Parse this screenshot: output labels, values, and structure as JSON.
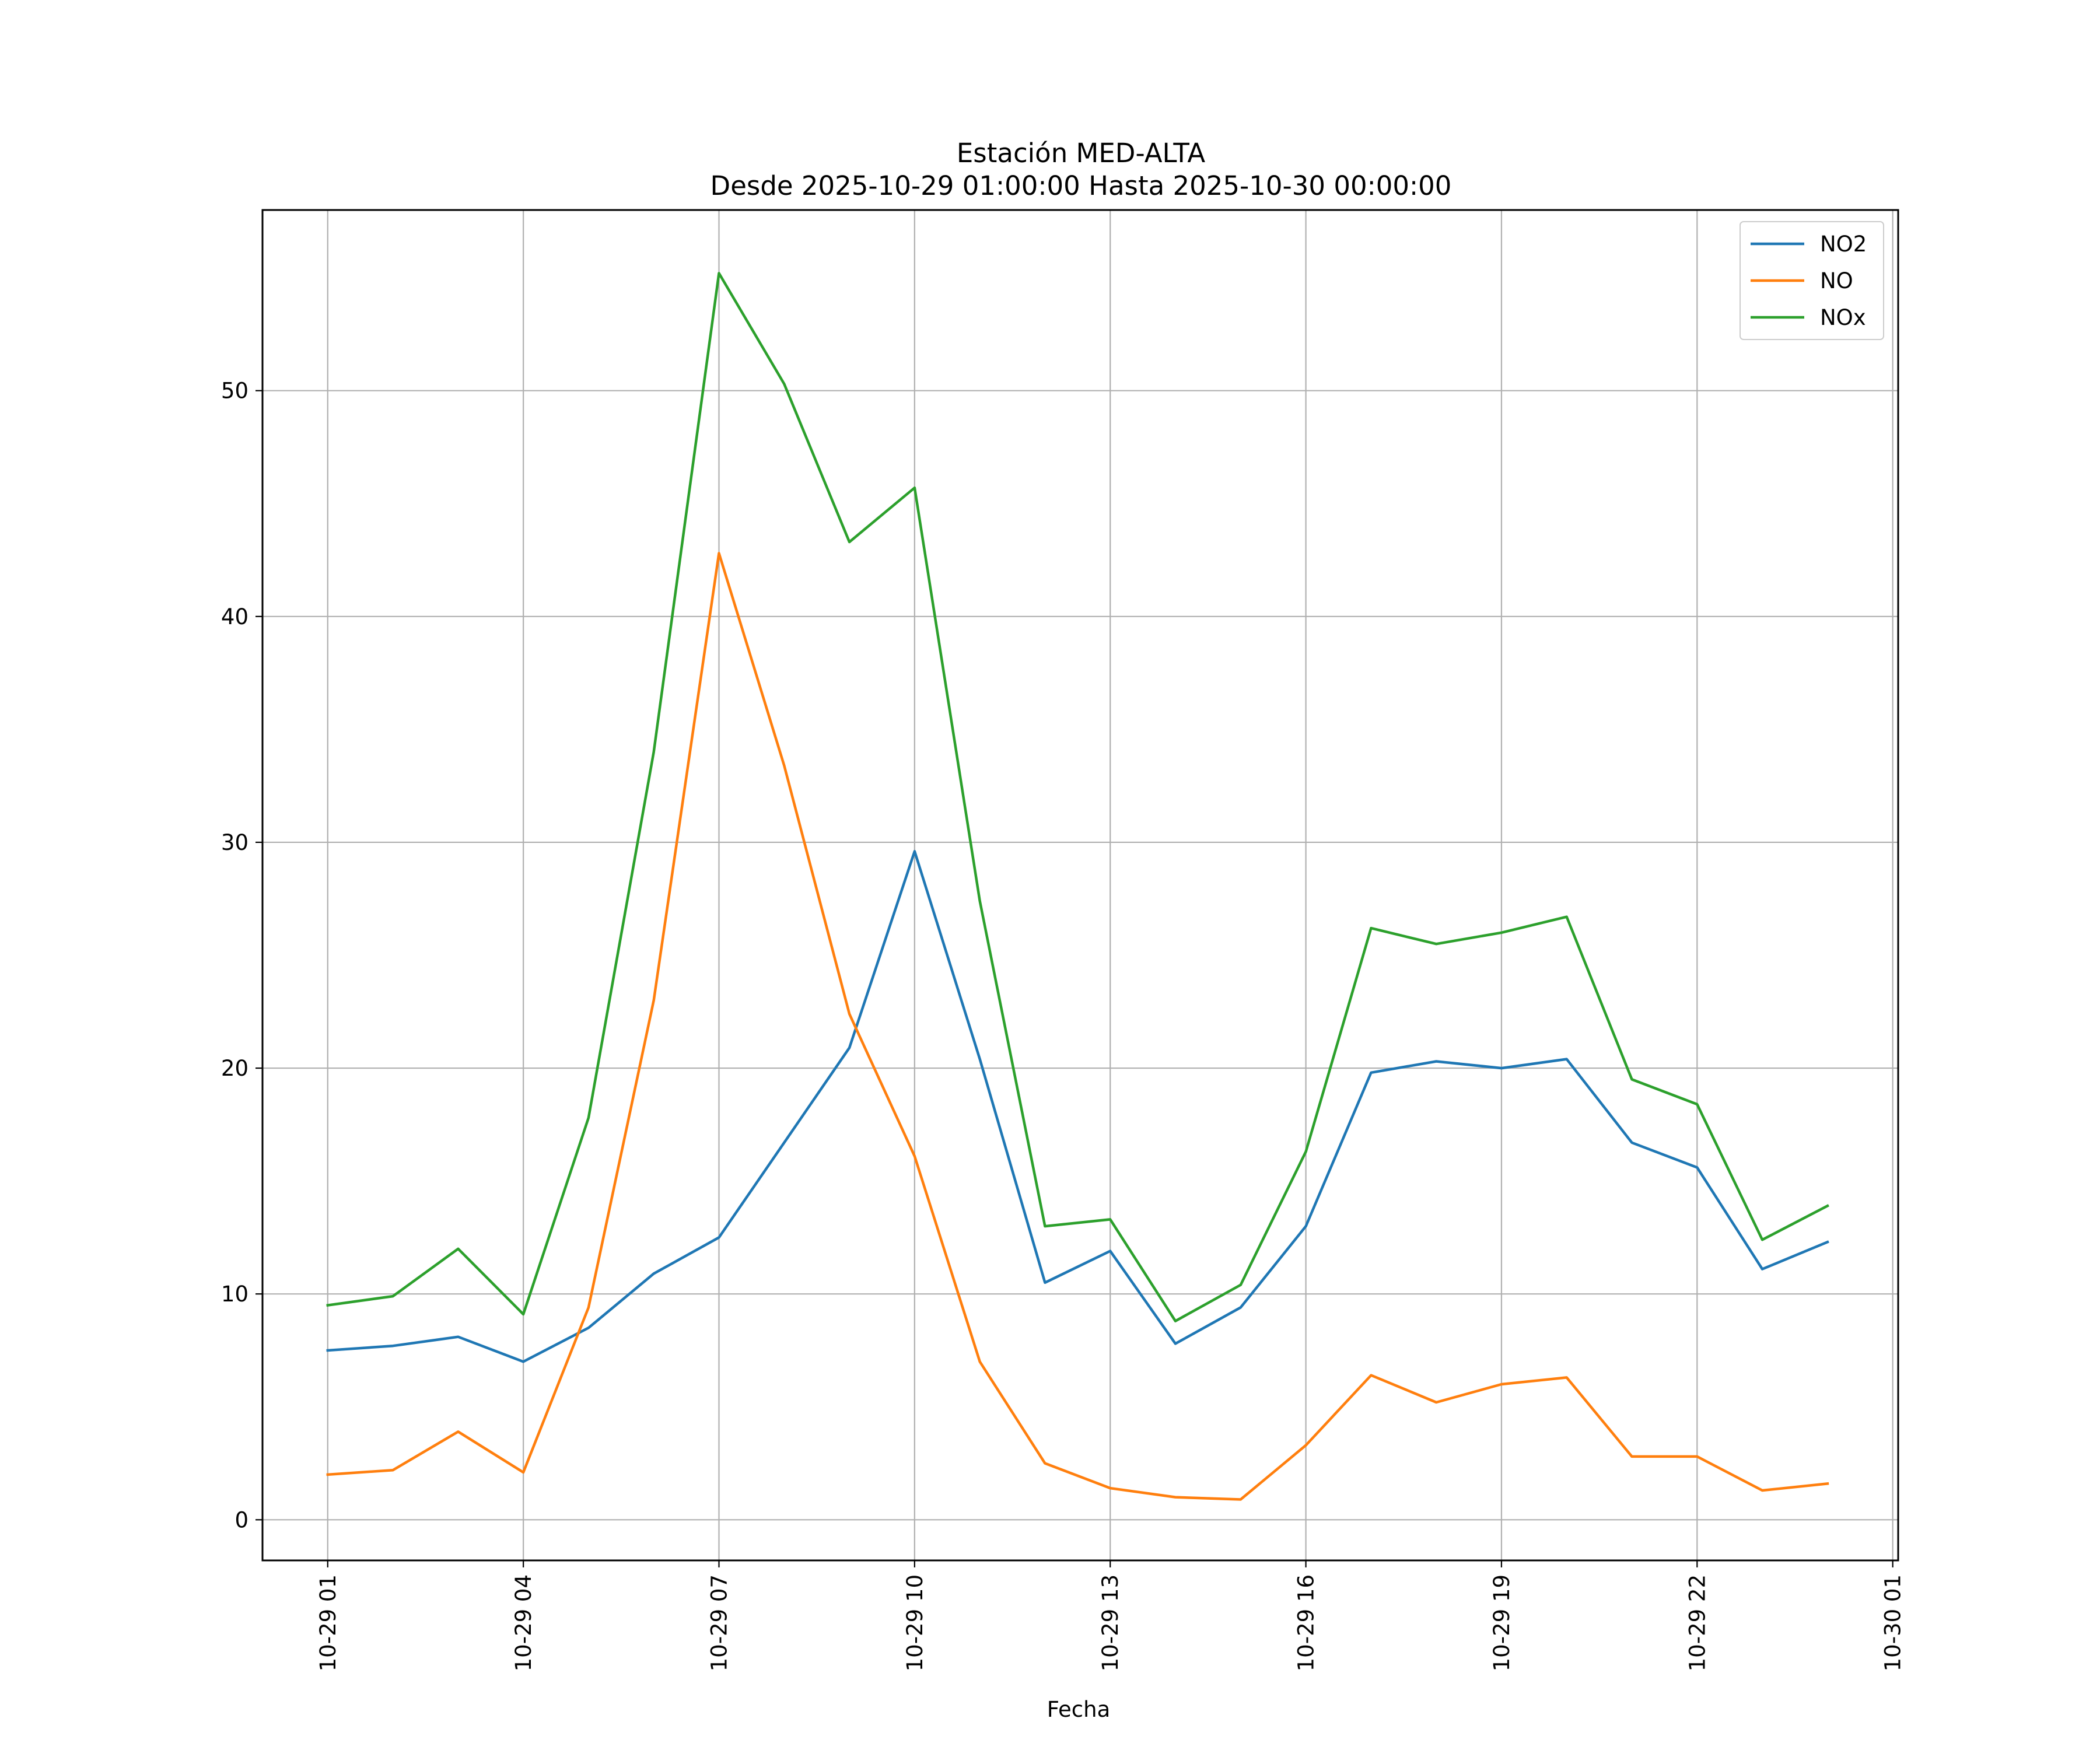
{
  "chart_data": {
    "type": "line",
    "title_line1": "Estación MED-ALTA",
    "title_line2": "Desde 2025-10-29 01:00:00 Hasta 2025-10-30 00:00:00",
    "xlabel": "Fecha",
    "ylabel": "",
    "x": [
      "2025-10-29 01:00",
      "2025-10-29 02:00",
      "2025-10-29 03:00",
      "2025-10-29 04:00",
      "2025-10-29 05:00",
      "2025-10-29 06:00",
      "2025-10-29 07:00",
      "2025-10-29 08:00",
      "2025-10-29 09:00",
      "2025-10-29 10:00",
      "2025-10-29 11:00",
      "2025-10-29 12:00",
      "2025-10-29 13:00",
      "2025-10-29 14:00",
      "2025-10-29 15:00",
      "2025-10-29 16:00",
      "2025-10-29 17:00",
      "2025-10-29 18:00",
      "2025-10-29 19:00",
      "2025-10-29 20:00",
      "2025-10-29 21:00",
      "2025-10-29 22:00",
      "2025-10-29 23:00",
      "2025-10-30 00:00"
    ],
    "xlim": [
      "2025-10-29 00:00",
      "2025-10-30 01:05"
    ],
    "xticks": [
      "2025-10-29 01:00",
      "2025-10-29 04:00",
      "2025-10-29 07:00",
      "2025-10-29 10:00",
      "2025-10-29 13:00",
      "2025-10-29 16:00",
      "2025-10-29 19:00",
      "2025-10-29 22:00",
      "2025-10-30 01:00"
    ],
    "xtick_labels": [
      "10-29 01",
      "10-29 04",
      "10-29 07",
      "10-29 10",
      "10-29 13",
      "10-29 16",
      "10-29 19",
      "10-29 22",
      "10-30 01"
    ],
    "ylim": [
      -1.8,
      58.0
    ],
    "yticks": [
      0,
      10,
      20,
      30,
      40,
      50
    ],
    "ytick_labels": [
      "0",
      "10",
      "20",
      "30",
      "40",
      "50"
    ],
    "grid": true,
    "legend_position": "top-right",
    "series": [
      {
        "name": "NO2",
        "color": "#1f77b4",
        "values": [
          7.5,
          7.7,
          8.1,
          7.0,
          8.5,
          10.9,
          12.5,
          16.7,
          20.9,
          29.6,
          20.4,
          10.5,
          11.9,
          7.8,
          9.4,
          13.0,
          19.8,
          20.3,
          20.0,
          20.4,
          16.7,
          15.6,
          11.1,
          12.3
        ]
      },
      {
        "name": "NO",
        "color": "#ff7f0e",
        "values": [
          2.0,
          2.2,
          3.9,
          2.1,
          9.4,
          23.0,
          42.8,
          33.4,
          22.4,
          16.1,
          7.0,
          2.5,
          1.4,
          1.0,
          0.9,
          3.3,
          6.4,
          5.2,
          6.0,
          6.3,
          2.8,
          2.8,
          1.3,
          1.6
        ]
      },
      {
        "name": "NOx",
        "color": "#2ca02c",
        "values": [
          9.5,
          9.9,
          12.0,
          9.1,
          17.8,
          34.0,
          55.2,
          50.3,
          43.3,
          45.7,
          27.4,
          13.0,
          13.3,
          8.8,
          10.4,
          16.3,
          26.2,
          25.5,
          26.0,
          26.7,
          19.5,
          18.4,
          12.4,
          13.9
        ]
      }
    ]
  }
}
